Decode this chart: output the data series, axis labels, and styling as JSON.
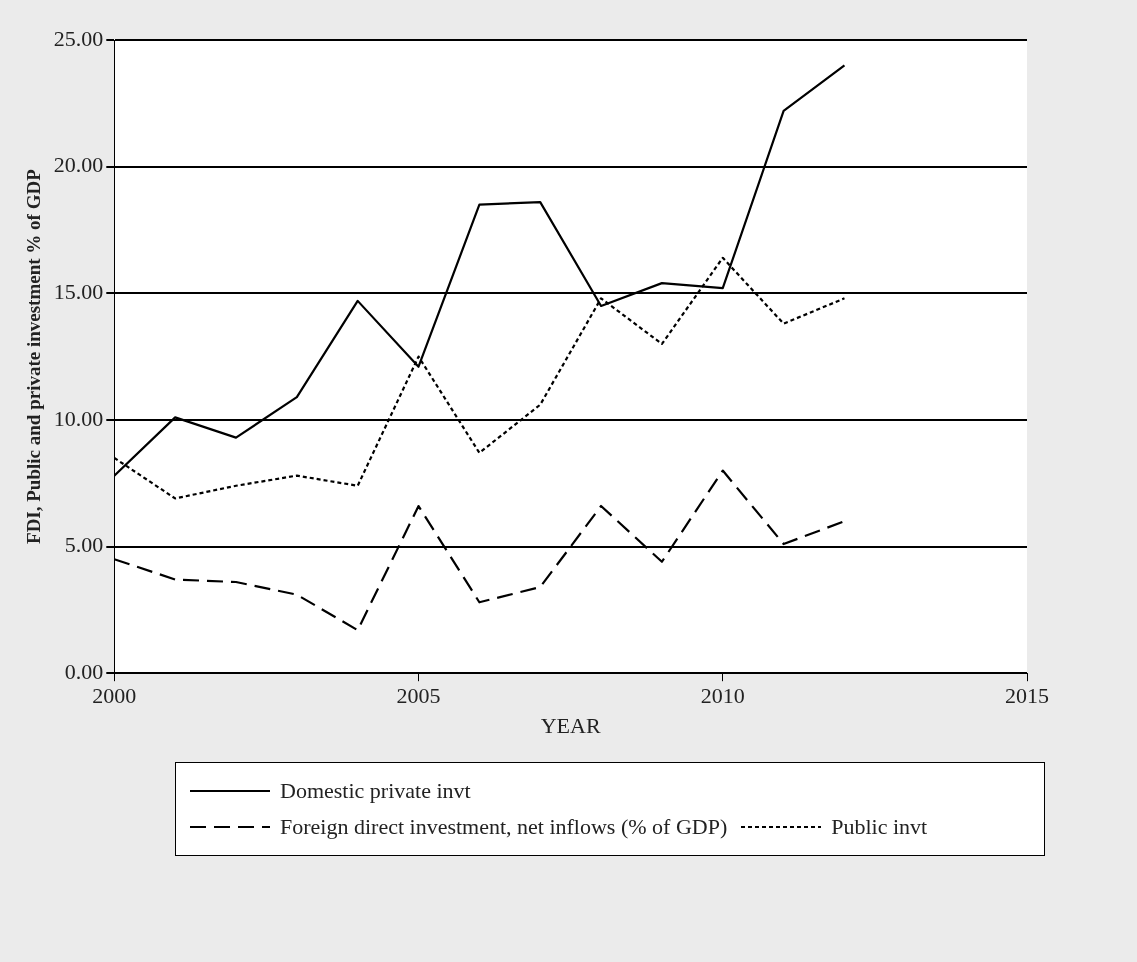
{
  "chart_data": {
    "type": "line",
    "xlabel": "YEAR",
    "ylabel": "FDI, Public and private investment % of GDP",
    "x": [
      2000,
      2001,
      2002,
      2003,
      2004,
      2005,
      2006,
      2007,
      2008,
      2009,
      2010,
      2011,
      2012
    ],
    "series": [
      {
        "name": "Domestic private invt",
        "color": "#000000",
        "line_style": "solid",
        "values": [
          7.8,
          10.1,
          9.3,
          10.9,
          14.7,
          12.1,
          18.5,
          18.6,
          14.5,
          15.4,
          15.2,
          22.2,
          24.0
        ]
      },
      {
        "name": "Foreign direct investment, net inflows (% of GDP)",
        "color": "#000000",
        "line_style": "dashed",
        "values": [
          4.5,
          3.7,
          3.6,
          3.1,
          1.7,
          6.6,
          2.8,
          3.4,
          6.6,
          4.4,
          8.0,
          5.1,
          6.0
        ]
      },
      {
        "name": "Public invt",
        "color": "#000000",
        "line_style": "dotted",
        "values": [
          8.5,
          6.9,
          7.4,
          7.8,
          7.4,
          12.5,
          8.7,
          10.6,
          14.8,
          13.0,
          16.4,
          13.8,
          14.8
        ]
      }
    ],
    "xlim": [
      2000,
      2015
    ],
    "xticks": [
      2000,
      2005,
      2010,
      2015
    ],
    "ylim": [
      0,
      25
    ],
    "yticks": [
      {
        "value": 0,
        "label": "0.00"
      },
      {
        "value": 5,
        "label": "5.00"
      },
      {
        "value": 10,
        "label": "10.00"
      },
      {
        "value": 15,
        "label": "15.00"
      },
      {
        "value": 20,
        "label": "20.00"
      },
      {
        "value": 25,
        "label": "25.00"
      }
    ],
    "grid": "y",
    "legend": "bottom",
    "marker": "none"
  }
}
